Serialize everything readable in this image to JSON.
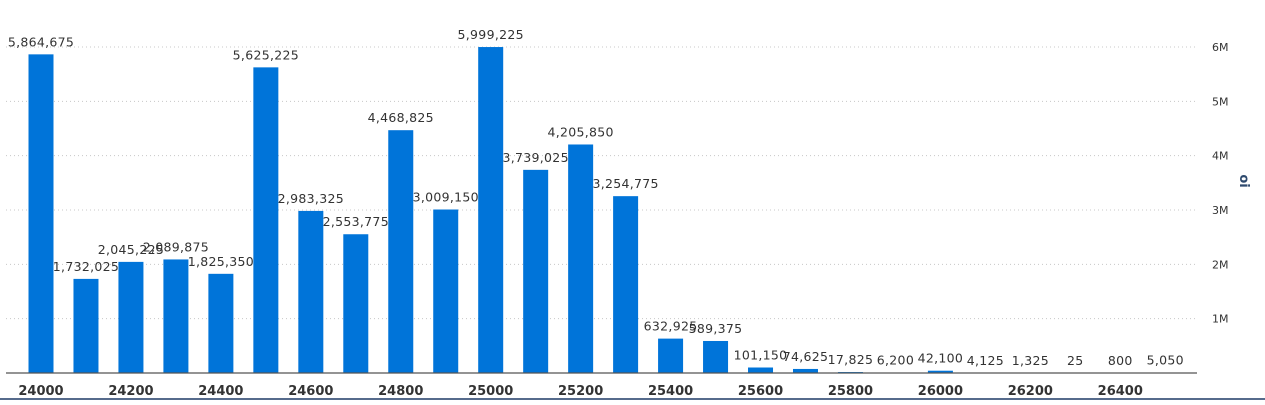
{
  "chart_data": {
    "type": "bar",
    "title": "",
    "xlabel": "",
    "ylabel": "oi",
    "categories": [
      24000,
      24100,
      24200,
      24300,
      24400,
      24500,
      24600,
      24700,
      24800,
      24900,
      25000,
      25100,
      25200,
      25300,
      25400,
      25500,
      25600,
      25700,
      25800,
      25900,
      26000,
      26100,
      26200,
      26300,
      26400,
      26500
    ],
    "values": [
      5864675,
      1732025,
      2045225,
      2089875,
      1825350,
      5625225,
      2983325,
      2553775,
      4468825,
      3009150,
      5999225,
      3739025,
      4205850,
      3254775,
      632925,
      589375,
      101150,
      74625,
      17825,
      6200,
      42100,
      4125,
      1325,
      25,
      800,
      5050
    ],
    "value_labels": [
      "5,864,675",
      "1,732,025",
      "2,045,225",
      "2,089,875",
      "1,825,350",
      "5,625,225",
      "2,983,325",
      "2,553,775",
      "4,468,825",
      "3,009,150",
      "5,999,225",
      "3,739,025",
      "4,205,850",
      "3,254,775",
      "632,925",
      "589,375",
      "101,150",
      "74,625",
      "17,825",
      "6,200",
      "42,100",
      "4,125",
      "1,325",
      "25",
      "800",
      "5,050"
    ],
    "x_tick_labels": [
      "24000",
      "24200",
      "24400",
      "24600",
      "24800",
      "25000",
      "25200",
      "25400",
      "25600",
      "25800",
      "26000",
      "26200",
      "26400"
    ],
    "y_ticks": [
      {
        "value": 1000000,
        "label": "1M"
      },
      {
        "value": 2000000,
        "label": "2M"
      },
      {
        "value": 3000000,
        "label": "3M"
      },
      {
        "value": 4000000,
        "label": "4M"
      },
      {
        "value": 5000000,
        "label": "5M"
      },
      {
        "value": 6000000,
        "label": "6M"
      }
    ],
    "ylim": [
      0,
      6000000
    ],
    "y_axis_side": "right",
    "grid": true,
    "bar_color": "#0074d9"
  }
}
